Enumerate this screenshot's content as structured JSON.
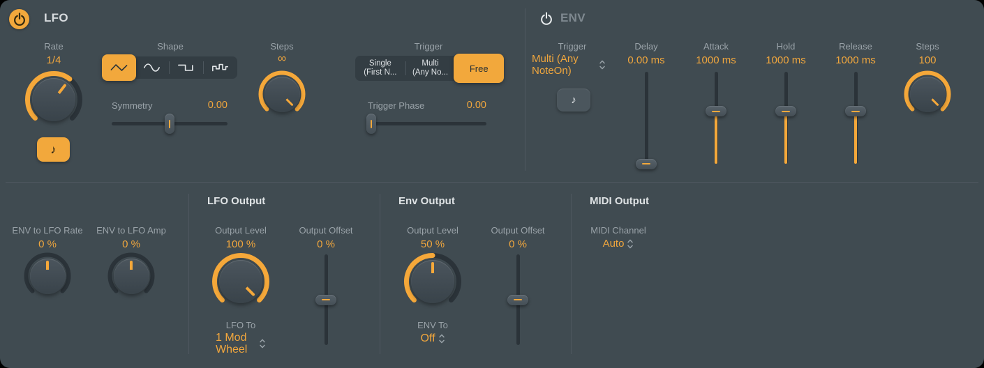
{
  "colors": {
    "accent": "#f2a83c",
    "panel_bg": "#404b51",
    "value_text": "#f0a63d"
  },
  "lfo": {
    "title": "LFO",
    "power_on": true,
    "rate": {
      "label": "Rate",
      "value": "1/4",
      "amount": 0.64
    },
    "shape": {
      "label": "Shape",
      "selected_index": 0,
      "options": [
        "triangle",
        "sine",
        "square",
        "random"
      ]
    },
    "symmetry": {
      "label": "Symmetry",
      "value": "0.00",
      "amount": 0.5
    },
    "steps": {
      "label": "Steps",
      "value": "∞",
      "amount": 1
    },
    "trigger": {
      "label": "Trigger",
      "selected_index": 2,
      "options": [
        {
          "line1": "Single",
          "line2": "(First N..."
        },
        {
          "line1": "Multi",
          "line2": "(Any No..."
        },
        {
          "line1": "Free",
          "line2": ""
        }
      ]
    },
    "trigger_phase": {
      "label": "Trigger Phase",
      "value": "0.00",
      "amount": 0.03
    }
  },
  "env": {
    "title": "ENV",
    "power_on": false,
    "trigger": {
      "label": "Trigger",
      "value": "Multi (Any NoteOn)"
    },
    "delay": {
      "label": "Delay",
      "value": "0.00 ms",
      "amount": 0,
      "fill": false
    },
    "attack": {
      "label": "Attack",
      "value": "1000 ms",
      "amount": 0.57,
      "fill": true
    },
    "hold": {
      "label": "Hold",
      "value": "1000 ms",
      "amount": 0.57,
      "fill": true
    },
    "release": {
      "label": "Release",
      "value": "1000 ms",
      "amount": 0.57,
      "fill": true
    },
    "steps": {
      "label": "Steps",
      "value": "100",
      "amount": 1
    }
  },
  "mod": {
    "env_to_lfo_rate": {
      "label": "ENV to LFO Rate",
      "value": "0 %",
      "amount": 0.5,
      "bipolar": true
    },
    "env_to_lfo_amp": {
      "label": "ENV to LFO Amp",
      "value": "0 %",
      "amount": 0.5,
      "bipolar": true
    }
  },
  "lfo_output": {
    "title": "LFO Output",
    "output_level": {
      "label": "Output Level",
      "value": "100 %",
      "amount": 1
    },
    "output_offset": {
      "label": "Output Offset",
      "value": "0 %",
      "amount": 0.5,
      "fill": false
    },
    "lfo_to": {
      "label": "LFO To",
      "value": "1 Mod Wheel"
    }
  },
  "env_output": {
    "title": "Env Output",
    "output_level": {
      "label": "Output Level",
      "value": "50 %",
      "amount": 0.5
    },
    "output_offset": {
      "label": "Output Offset",
      "value": "0 %",
      "amount": 0.5,
      "fill": false
    },
    "env_to": {
      "label": "ENV To",
      "value": "Off"
    }
  },
  "midi_output": {
    "title": "MIDI Output",
    "midi_channel": {
      "label": "MIDI Channel",
      "value": "Auto"
    }
  }
}
